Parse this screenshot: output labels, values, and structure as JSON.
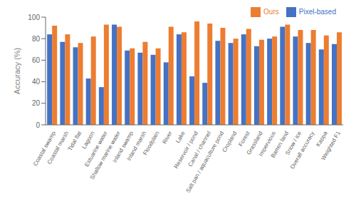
{
  "chart_data": {
    "type": "bar",
    "categories": [
      "Coastal swamp",
      "Coastal marsh",
      "Tidal flat",
      "Lagoon",
      "Estuarine water",
      "Shallow marine water",
      "Inland swamp",
      "Inland marsh",
      "Floodplain",
      "River",
      "Lake",
      "Reservoir / pond",
      "Canal / channel",
      "Salt pan / aquaculture pond",
      "Cropland",
      "Forest",
      "Grassland",
      "Impervious",
      "Barren land",
      "Snow / ice",
      "Overall accuracy",
      "Kappa",
      "Weighted F1"
    ],
    "series": [
      {
        "name": "Pixel-based",
        "color": "#4472c4",
        "values": [
          84,
          77,
          72,
          43,
          35,
          93,
          69,
          67,
          65,
          58,
          84,
          45,
          39,
          78,
          76,
          84,
          73,
          80,
          91,
          82,
          76,
          70,
          75
        ]
      },
      {
        "name": "Ours",
        "color": "#ed7d31",
        "values": [
          92,
          84,
          76,
          82,
          93,
          91,
          71,
          77,
          71,
          91,
          86,
          96,
          94,
          90,
          80,
          89,
          79,
          82,
          93,
          88,
          88,
          83,
          86
        ]
      }
    ],
    "ylabel": "Accuracy (%)",
    "ylim": [
      0,
      100
    ],
    "yticks": [
      0,
      20,
      40,
      60,
      80,
      100
    ],
    "grid": false,
    "legend": "upper right"
  }
}
